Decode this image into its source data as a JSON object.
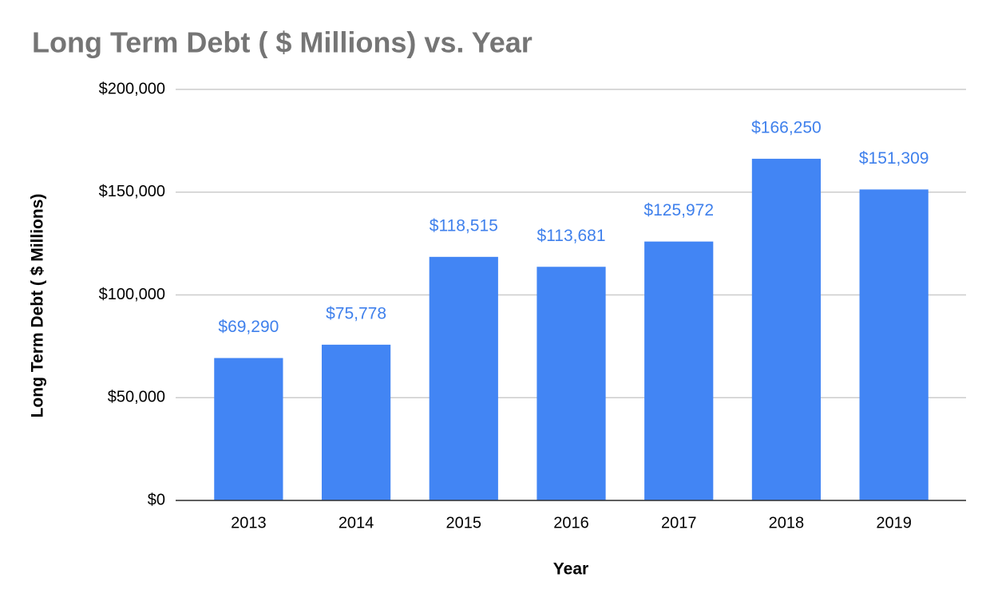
{
  "chart_data": {
    "type": "bar",
    "title": "Long Term Debt ( $ Millions) vs. Year",
    "x_label": "Year",
    "y_label": "Long Term Debt ( $ Millions)",
    "categories": [
      "2013",
      "2014",
      "2015",
      "2016",
      "2017",
      "2018",
      "2019"
    ],
    "values": [
      69290,
      75778,
      118515,
      113681,
      125972,
      166250,
      151309
    ],
    "value_labels": [
      "$69,290",
      "$75,778",
      "$118,515",
      "$113,681",
      "$125,972",
      "$166,250",
      "$151,309"
    ],
    "color": "#4285f4",
    "ylim": [
      0,
      200000
    ],
    "yticks": [
      {
        "value": 0,
        "label": "$0"
      },
      {
        "value": 50000,
        "label": "$50,000"
      },
      {
        "value": 100000,
        "label": "$100,000"
      },
      {
        "value": 150000,
        "label": "$150,000"
      },
      {
        "value": 200000,
        "label": "$200,000"
      }
    ],
    "grid": true
  }
}
